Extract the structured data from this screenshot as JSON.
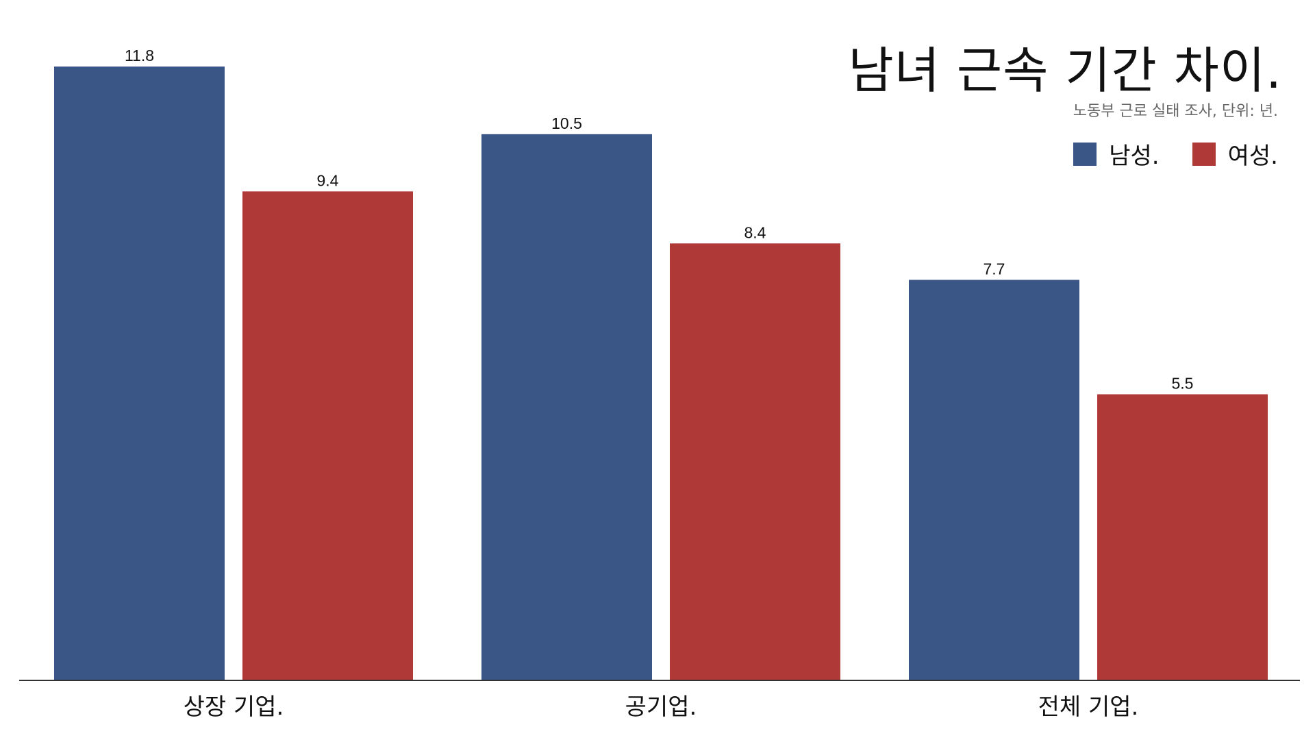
{
  "chart_data": {
    "type": "bar",
    "title": "남녀 근속 기간 차이.",
    "subtitle": "노동부 근로 실태 조사, 단위: 년.",
    "categories": [
      "상장 기업.",
      "공기업.",
      "전체 기업."
    ],
    "series": [
      {
        "name": "남성.",
        "color": "#3a5687",
        "values": [
          11.8,
          10.5,
          7.7
        ]
      },
      {
        "name": "여성.",
        "color": "#ae3937",
        "values": [
          9.4,
          8.4,
          5.5
        ]
      }
    ],
    "xlabel": "",
    "ylabel": "",
    "ylim": [
      0,
      12.5
    ],
    "grid": false,
    "legend_position": "top-right",
    "axis_color": "#333333"
  }
}
